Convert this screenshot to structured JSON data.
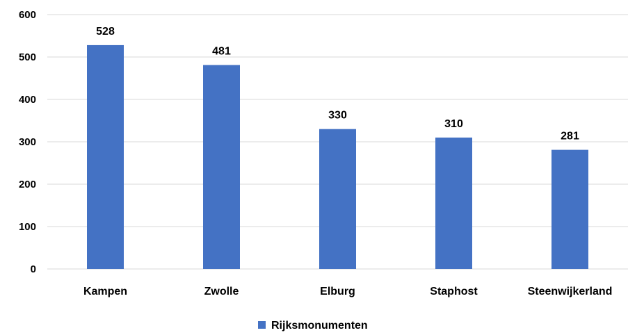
{
  "chart_data": {
    "type": "bar",
    "title": "",
    "xlabel": "",
    "ylabel": "",
    "categories": [
      "Kampen",
      "Zwolle",
      "Elburg",
      "Staphost",
      "Steenwijkerland"
    ],
    "series": [
      {
        "name": "Rijksmonumenten",
        "values": [
          528,
          481,
          330,
          310,
          281
        ],
        "color": "#4472c4"
      }
    ],
    "ylim": [
      0,
      600
    ],
    "yticks": [
      0,
      100,
      200,
      300,
      400,
      500,
      600
    ],
    "grid": true,
    "data_labels": true,
    "legend_position": "bottom"
  }
}
